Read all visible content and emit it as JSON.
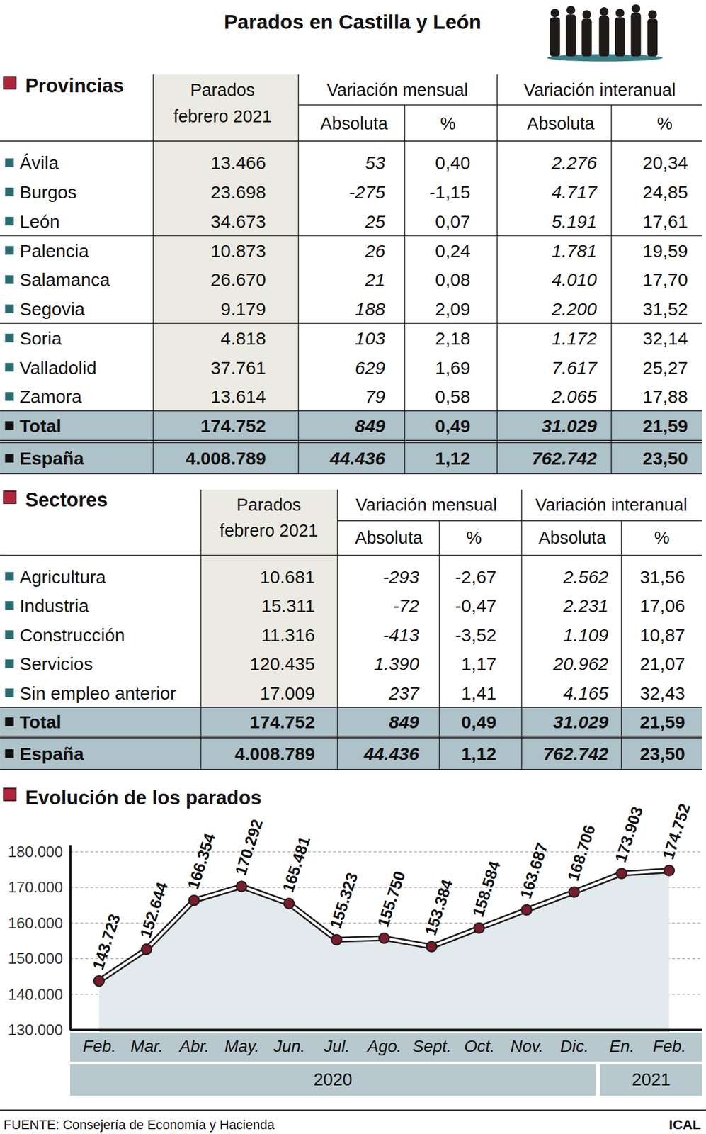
{
  "header": {
    "title": "Parados en Castilla y León"
  },
  "tables": [
    {
      "title": "Provincias",
      "col_header": [
        "Parados",
        "febrero 2021"
      ],
      "group_headers": [
        "Variación mensual",
        "Variación interanual"
      ],
      "sub_headers": [
        "Absoluta",
        "%",
        "Absoluta",
        "%"
      ],
      "rows": [
        [
          "Ávila",
          "13.466",
          "53",
          "0,40",
          "2.276",
          "20,34"
        ],
        [
          "Burgos",
          "23.698",
          "-275",
          "-1,15",
          "4.717",
          "24,85"
        ],
        [
          "León",
          "34.673",
          "25",
          "0,07",
          "5.191",
          "17,61"
        ],
        [
          "Palencia",
          "10.873",
          "26",
          "0,24",
          "1.781",
          "19,59"
        ],
        [
          "Salamanca",
          "26.670",
          "21",
          "0,08",
          "4.010",
          "17,70"
        ],
        [
          "Segovia",
          "9.179",
          "188",
          "2,09",
          "2.200",
          "31,52"
        ],
        [
          "Soria",
          "4.818",
          "103",
          "2,18",
          "1.172",
          "32,14"
        ],
        [
          "Valladolid",
          "37.761",
          "629",
          "1,69",
          "7.617",
          "25,27"
        ],
        [
          "Zamora",
          "13.614",
          "79",
          "0,58",
          "2.065",
          "17,88"
        ]
      ],
      "summary_rows": [
        [
          "Total",
          "174.752",
          "849",
          "0,49",
          "31.029",
          "21,59"
        ],
        [
          "España",
          "4.008.789",
          "44.436",
          "1,12",
          "762.742",
          "23,50"
        ]
      ]
    },
    {
      "title": "Sectores",
      "col_header": [
        "Parados",
        "febrero 2021"
      ],
      "group_headers": [
        "Variación mensual",
        "Variación interanual"
      ],
      "sub_headers": [
        "Absoluta",
        "%",
        "Absoluta",
        "%"
      ],
      "rows": [
        [
          "Agricultura",
          "10.681",
          "-293",
          "-2,67",
          "2.562",
          "31,56"
        ],
        [
          "Industria",
          "15.311",
          "-72",
          "-0,47",
          "2.231",
          "17,06"
        ],
        [
          "Construcción",
          "11.316",
          "-413",
          "-3,52",
          "1.109",
          "10,87"
        ],
        [
          "Servicios",
          "120.435",
          "1.390",
          "1,17",
          "20.962",
          "21,07"
        ],
        [
          "Sin empleo anterior",
          "17.009",
          "237",
          "1,41",
          "4.165",
          "32,43"
        ]
      ],
      "summary_rows": [
        [
          "Total",
          "174.752",
          "849",
          "0,49",
          "31.029",
          "21,59"
        ],
        [
          "España",
          "4.008.789",
          "44.436",
          "1,12",
          "762.742",
          "23,50"
        ]
      ]
    }
  ],
  "chart_data": {
    "type": "line",
    "title": "Evolución de los parados",
    "categories": [
      "Feb.",
      "Mar.",
      "Abr.",
      "May.",
      "Jun.",
      "Jul.",
      "Ago.",
      "Sept.",
      "Oct.",
      "Nov.",
      "Dic.",
      "En.",
      "Feb."
    ],
    "x_groups": [
      {
        "label": "2020",
        "count": 11
      },
      {
        "label": "2021",
        "count": 2
      }
    ],
    "values": [
      143723,
      152644,
      166354,
      170292,
      165481,
      155323,
      155750,
      153384,
      158584,
      163687,
      168706,
      173903,
      174752
    ],
    "value_labels": [
      "143.723",
      "152.644",
      "166.354",
      "170.292",
      "165.481",
      "155.323",
      "155.750",
      "153.384",
      "158.584",
      "163.687",
      "168.706",
      "173.903",
      "174.752"
    ],
    "color": "#231f20",
    "marker": "circle",
    "data_labels": true,
    "grid": true,
    "ylim": [
      130000,
      182000
    ],
    "yticks": [
      {
        "value": 130000,
        "label": "130.000"
      },
      {
        "value": 140000,
        "label": "140.000"
      },
      {
        "value": 150000,
        "label": "150.000"
      },
      {
        "value": 160000,
        "label": "160.000"
      },
      {
        "value": 170000,
        "label": "170.000"
      },
      {
        "value": 180000,
        "label": "180.000"
      }
    ]
  },
  "footer": {
    "source": "FUENTE: Consejería de Economía y Hacienda",
    "credit": "ICAL"
  }
}
